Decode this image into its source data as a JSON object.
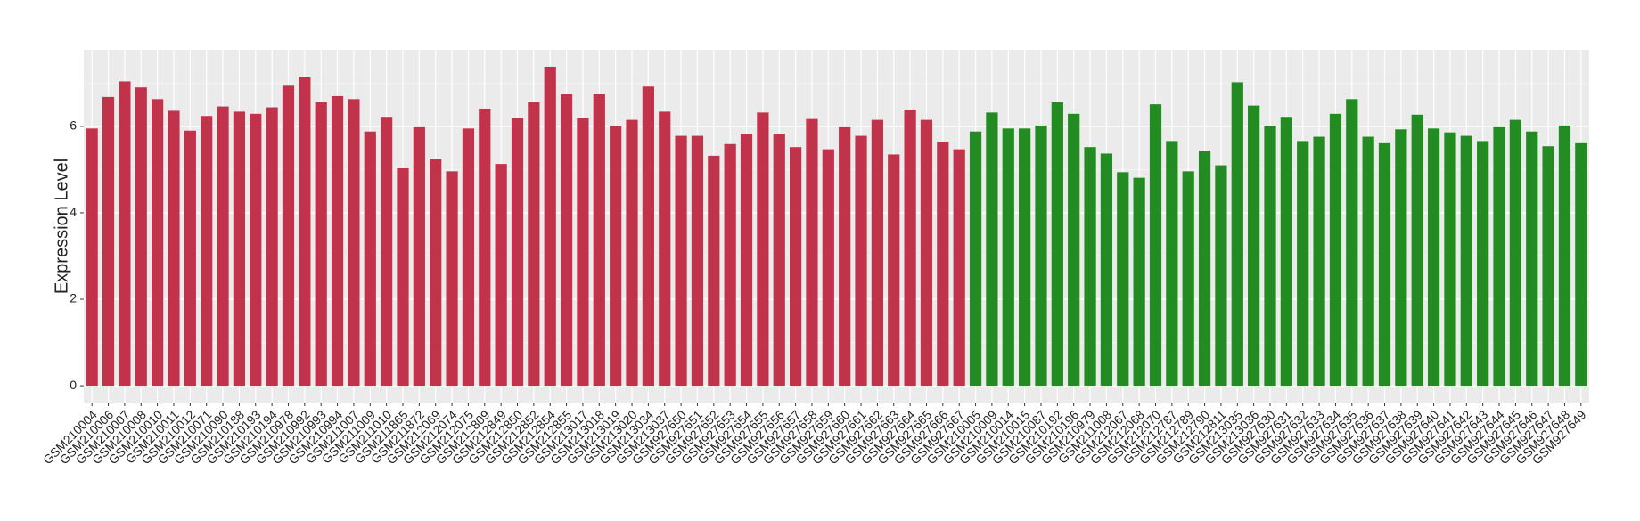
{
  "chart_data": {
    "type": "bar",
    "y_label": "Expression Level",
    "categories": [
      "GSM210004",
      "GSM210006",
      "GSM210007",
      "GSM210008",
      "GSM210010",
      "GSM210011",
      "GSM210012",
      "GSM210071",
      "GSM210090",
      "GSM210188",
      "GSM210193",
      "GSM210194",
      "GSM210978",
      "GSM210992",
      "GSM210993",
      "GSM210994",
      "GSM211007",
      "GSM211009",
      "GSM211010",
      "GSM211865",
      "GSM211872",
      "GSM212069",
      "GSM212074",
      "GSM212075",
      "GSM212809",
      "GSM212849",
      "GSM212850",
      "GSM212852",
      "GSM212854",
      "GSM212855",
      "GSM213017",
      "GSM213018",
      "GSM213019",
      "GSM213020",
      "GSM213034",
      "GSM213037",
      "GSM927650",
      "GSM927651",
      "GSM927652",
      "GSM927653",
      "GSM927654",
      "GSM927655",
      "GSM927656",
      "GSM927657",
      "GSM927658",
      "GSM927659",
      "GSM927660",
      "GSM927661",
      "GSM927662",
      "GSM927663",
      "GSM927664",
      "GSM927665",
      "GSM927666",
      "GSM927667",
      "GSM210005",
      "GSM210009",
      "GSM210014",
      "GSM210015",
      "GSM210087",
      "GSM210192",
      "GSM210196",
      "GSM210979",
      "GSM211008",
      "GSM212067",
      "GSM212068",
      "GSM212070",
      "GSM212787",
      "GSM212789",
      "GSM212790",
      "GSM212811",
      "GSM213035",
      "GSM213036",
      "GSM927630",
      "GSM927631",
      "GSM927632",
      "GSM927633",
      "GSM927634",
      "GSM927635",
      "GSM927636",
      "GSM927637",
      "GSM927638",
      "GSM927639",
      "GSM927640",
      "GSM927641",
      "GSM927642",
      "GSM927643",
      "GSM927644",
      "GSM927645",
      "GSM927646",
      "GSM927647",
      "GSM927648",
      "GSM927649"
    ],
    "values": [
      5.95,
      6.68,
      7.04,
      6.9,
      6.63,
      6.36,
      5.9,
      6.24,
      6.46,
      6.34,
      6.29,
      6.44,
      6.94,
      7.14,
      6.56,
      6.7,
      6.63,
      5.88,
      6.22,
      5.03,
      5.98,
      5.25,
      4.96,
      5.95,
      6.41,
      5.13,
      6.19,
      6.56,
      7.38,
      6.75,
      6.19,
      6.75,
      6.0,
      6.15,
      6.92,
      6.34,
      5.78,
      5.78,
      5.32,
      5.59,
      5.83,
      6.32,
      5.83,
      5.52,
      6.17,
      5.47,
      5.98,
      5.78,
      6.15,
      5.35,
      6.39,
      6.15,
      5.64,
      5.47,
      5.88,
      6.32,
      5.95,
      5.95,
      6.02,
      6.56,
      6.29,
      5.52,
      5.37,
      4.94,
      4.81,
      6.51,
      5.66,
      4.96,
      5.44,
      5.1,
      7.02,
      6.48,
      6.0,
      6.22,
      5.66,
      5.76,
      6.29,
      6.63,
      5.76,
      5.61,
      5.93,
      6.27,
      5.95,
      5.86,
      5.78,
      5.66,
      5.98,
      6.15,
      5.88,
      5.54,
      6.02,
      5.61
    ],
    "colors": [
      "#c1334a",
      "#c1334a",
      "#c1334a",
      "#c1334a",
      "#c1334a",
      "#c1334a",
      "#c1334a",
      "#c1334a",
      "#c1334a",
      "#c1334a",
      "#c1334a",
      "#c1334a",
      "#c1334a",
      "#c1334a",
      "#c1334a",
      "#c1334a",
      "#c1334a",
      "#c1334a",
      "#c1334a",
      "#c1334a",
      "#c1334a",
      "#c1334a",
      "#c1334a",
      "#c1334a",
      "#c1334a",
      "#c1334a",
      "#c1334a",
      "#c1334a",
      "#c1334a",
      "#c1334a",
      "#c1334a",
      "#c1334a",
      "#c1334a",
      "#c1334a",
      "#c1334a",
      "#c1334a",
      "#c1334a",
      "#c1334a",
      "#c1334a",
      "#c1334a",
      "#c1334a",
      "#c1334a",
      "#c1334a",
      "#c1334a",
      "#c1334a",
      "#c1334a",
      "#c1334a",
      "#c1334a",
      "#c1334a",
      "#c1334a",
      "#c1334a",
      "#c1334a",
      "#c1334a",
      "#c1334a",
      "#228b22",
      "#228b22",
      "#228b22",
      "#228b22",
      "#228b22",
      "#228b22",
      "#228b22",
      "#228b22",
      "#228b22",
      "#228b22",
      "#228b22",
      "#228b22",
      "#228b22",
      "#228b22",
      "#228b22",
      "#228b22",
      "#228b22",
      "#228b22",
      "#228b22",
      "#228b22",
      "#228b22",
      "#228b22",
      "#228b22",
      "#228b22",
      "#228b22",
      "#228b22",
      "#228b22",
      "#228b22",
      "#228b22",
      "#228b22",
      "#228b22",
      "#228b22",
      "#228b22",
      "#228b22",
      "#228b22",
      "#228b22",
      "#228b22",
      "#228b22"
    ],
    "ylim": [
      -0.39,
      7.77
    ],
    "yticks": [
      0,
      2,
      4,
      6
    ],
    "minor_yticks": [
      1,
      3,
      5,
      7
    ],
    "grid": true
  }
}
